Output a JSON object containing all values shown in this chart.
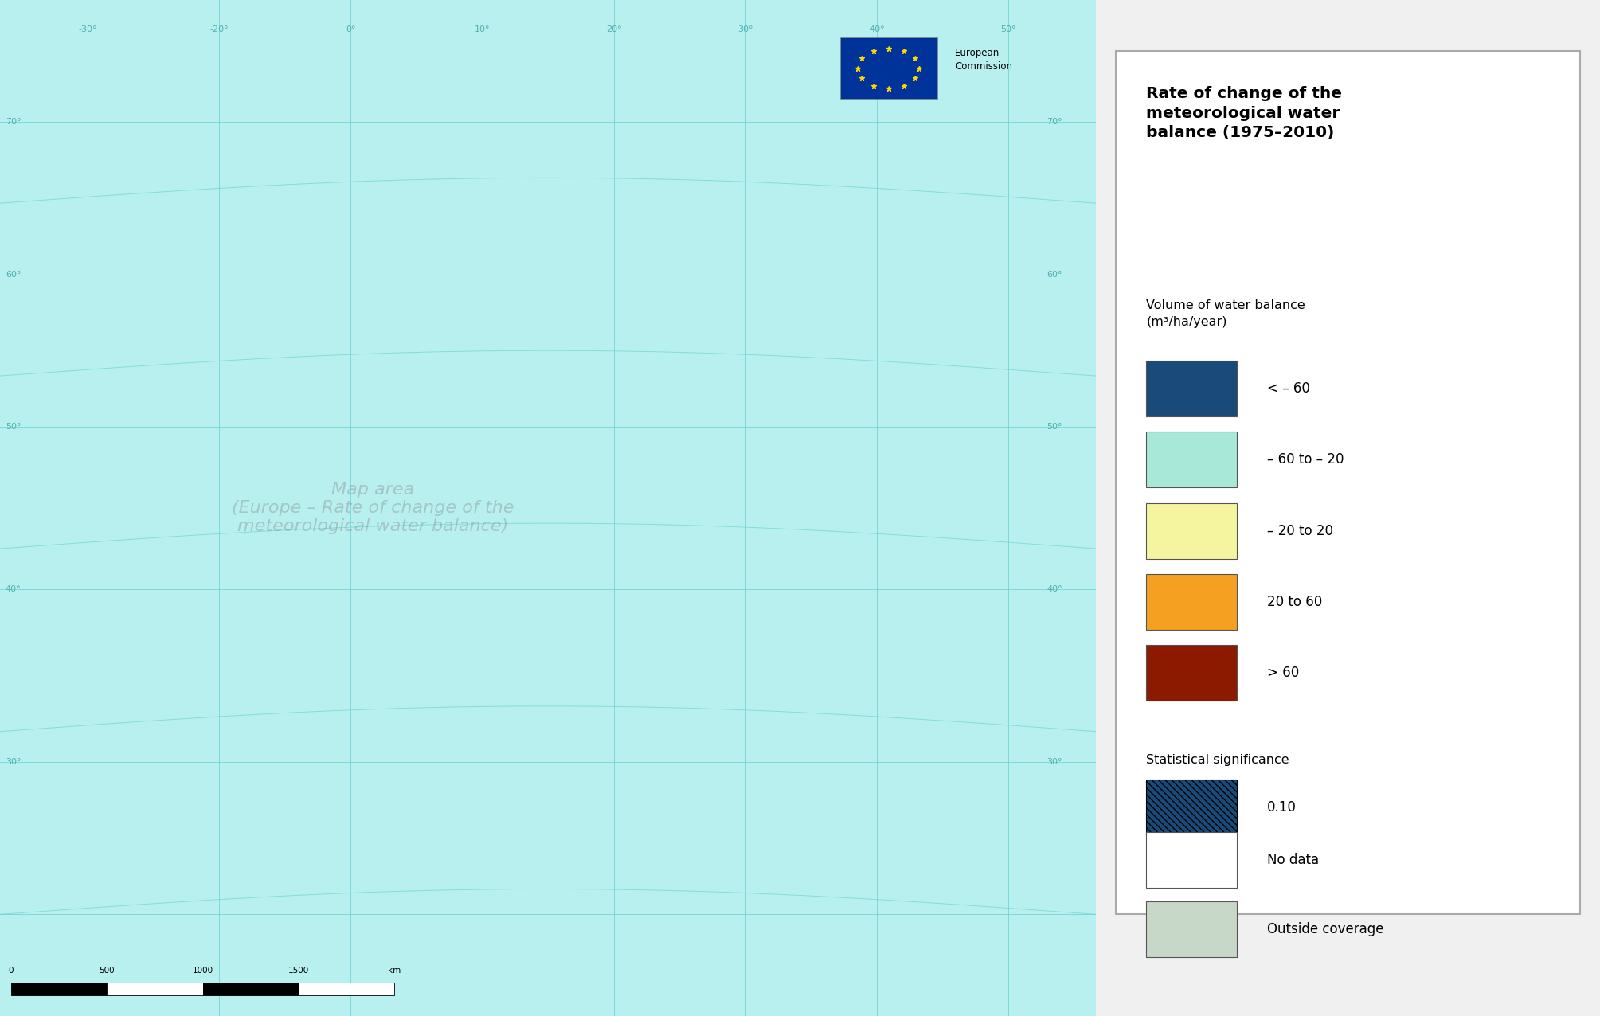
{
  "title": "Rate of change of the\nmeteorological water\nbalance (1975–2010)",
  "legend_subtitle": "Volume of water balance\n(m³/ha/year)",
  "legend_items": [
    {
      "label": "< – 60",
      "color": "#1a4a7a"
    },
    {
      "label": "– 60 to – 20",
      "color": "#a8e8d8"
    },
    {
      "label": "– 20 to 20",
      "color": "#f5f5a0"
    },
    {
      "label": "20 to 60",
      "color": "#f5a020"
    },
    {
      "label": "> 60",
      "color": "#8b1a00"
    }
  ],
  "stat_sig_label": "Statistical significance",
  "stat_sig_value": "0.10",
  "no_data_label": "No data",
  "outside_coverage_label": "Outside coverage",
  "no_data_color": "#ffffff",
  "outside_coverage_color": "#c8d8c8",
  "map_bg_color": "#b8f0f0",
  "legend_bg_color": "#f0f0f0",
  "title_fontsize": 14.5,
  "legend_fontsize": 12,
  "subtitle_fontsize": 11.5
}
